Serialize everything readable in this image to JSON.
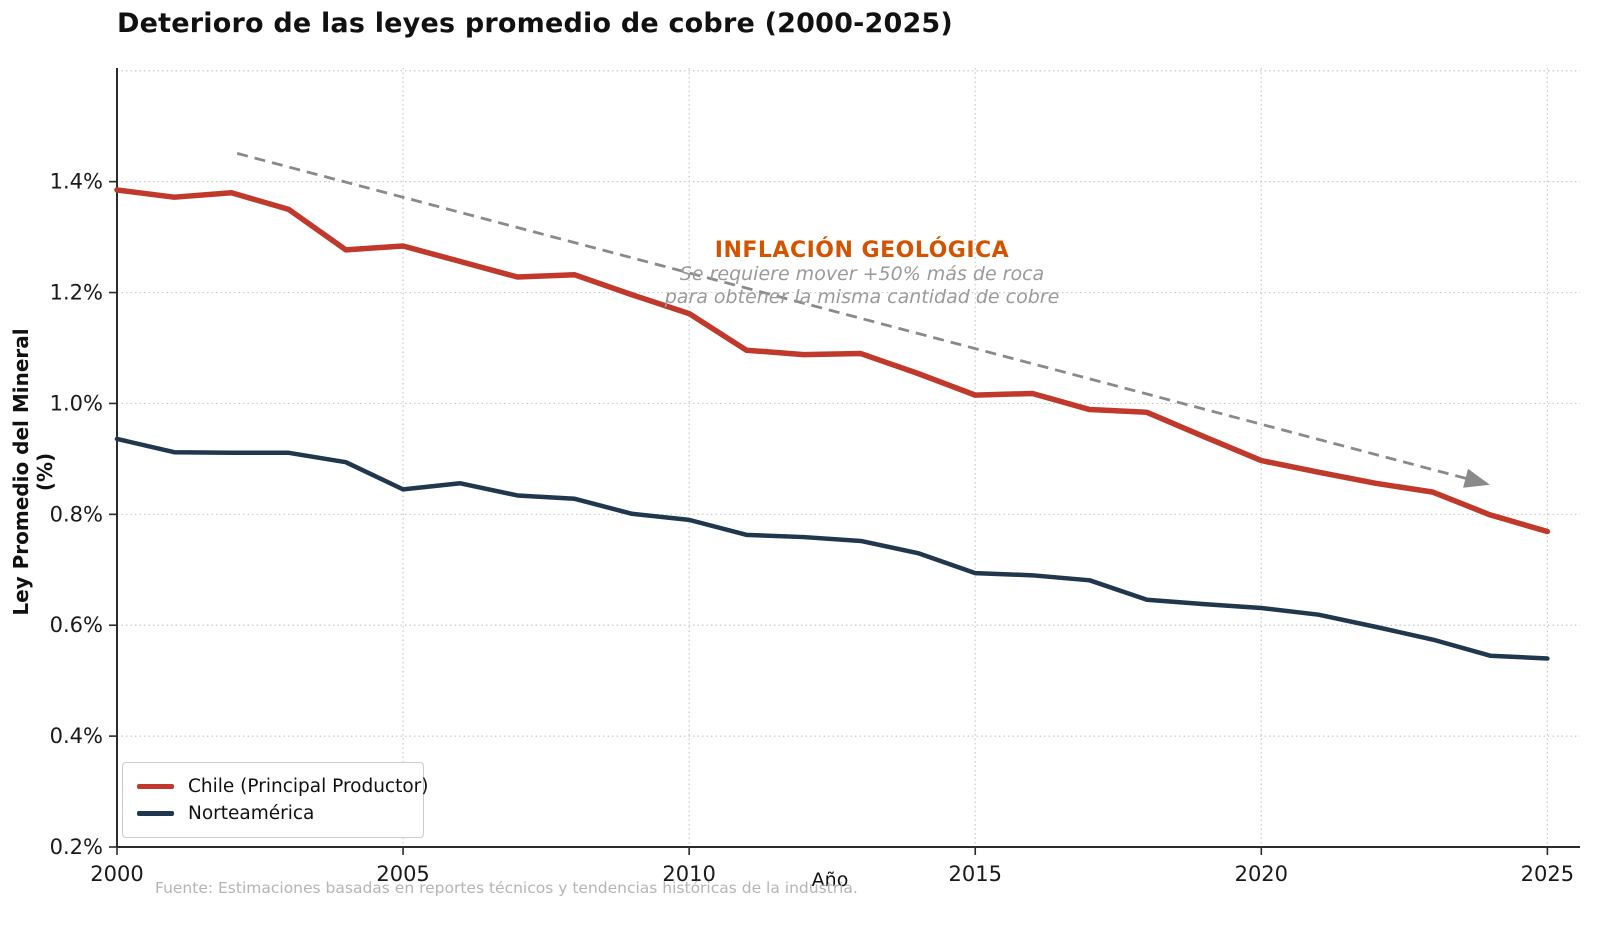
{
  "title": "Deterioro de las leyes promedio de cobre (2000-2025)",
  "source": "Fuente: Estimaciones basadas en reportes técnicos y tendencias históricas de la industria.",
  "legend": {
    "items": [
      {
        "label": "Chile (Principal Productor)",
        "color": "#c0392b"
      },
      {
        "label": "Norteamérica",
        "color": "#20374e"
      }
    ]
  },
  "chart_data": {
    "type": "line",
    "title": "Deterioro de las leyes promedio de cobre (2000-2025)",
    "xlabel": "Año",
    "ylabel": "Ley Promedio del Mineral (%)",
    "xlim": [
      2000,
      2025.57
    ],
    "ylim": [
      0.2,
      1.605
    ],
    "x_ticks": [
      2000,
      2005,
      2010,
      2015,
      2020,
      2025
    ],
    "y_ticks": [
      0.2,
      0.4,
      0.6,
      0.8,
      1.0,
      1.2,
      1.4
    ],
    "y_grid_extra": [
      1.6
    ],
    "grid": true,
    "legend_position": "lower-left",
    "x": [
      2000,
      2001,
      2002,
      2003,
      2004,
      2005,
      2006,
      2007,
      2008,
      2009,
      2010,
      2011,
      2012,
      2013,
      2014,
      2015,
      2016,
      2017,
      2018,
      2019,
      2020,
      2021,
      2022,
      2023,
      2024,
      2025
    ],
    "series": [
      {
        "name": "Chile (Principal Productor)",
        "color": "#c0392b",
        "width": 5.5,
        "values": [
          1.385,
          1.372,
          1.38,
          1.35,
          1.277,
          1.284,
          1.256,
          1.228,
          1.232,
          1.196,
          1.162,
          1.096,
          1.088,
          1.09,
          1.054,
          1.015,
          1.018,
          0.989,
          0.984,
          0.94,
          0.897,
          0.876,
          0.856,
          0.84,
          0.799,
          0.769
        ]
      },
      {
        "name": "Norteamérica",
        "color": "#20374e",
        "width": 4.5,
        "values": [
          0.936,
          0.912,
          0.911,
          0.911,
          0.894,
          0.845,
          0.856,
          0.834,
          0.828,
          0.801,
          0.79,
          0.763,
          0.759,
          0.752,
          0.73,
          0.694,
          0.69,
          0.681,
          0.646,
          0.638,
          0.631,
          0.619,
          0.597,
          0.574,
          0.545,
          0.54
        ]
      }
    ],
    "trend_arrow": {
      "from": [
        2002.1,
        1.451
      ],
      "to": [
        2023.9,
        0.856
      ],
      "color": "#8a8a8a",
      "dash": "11 7",
      "width": 2.8
    },
    "annotation": {
      "title": "INFLACIÓN GEOLÓGICA",
      "title_color": "#d35400",
      "lines": [
        "Se requiere mover +50% más de roca",
        "para obtener la misma cantidad de cobre"
      ]
    },
    "axis_color": "#2b2b2b",
    "grid_color": "#c9c9c9",
    "tick_label_color": "#1a1a1a"
  }
}
